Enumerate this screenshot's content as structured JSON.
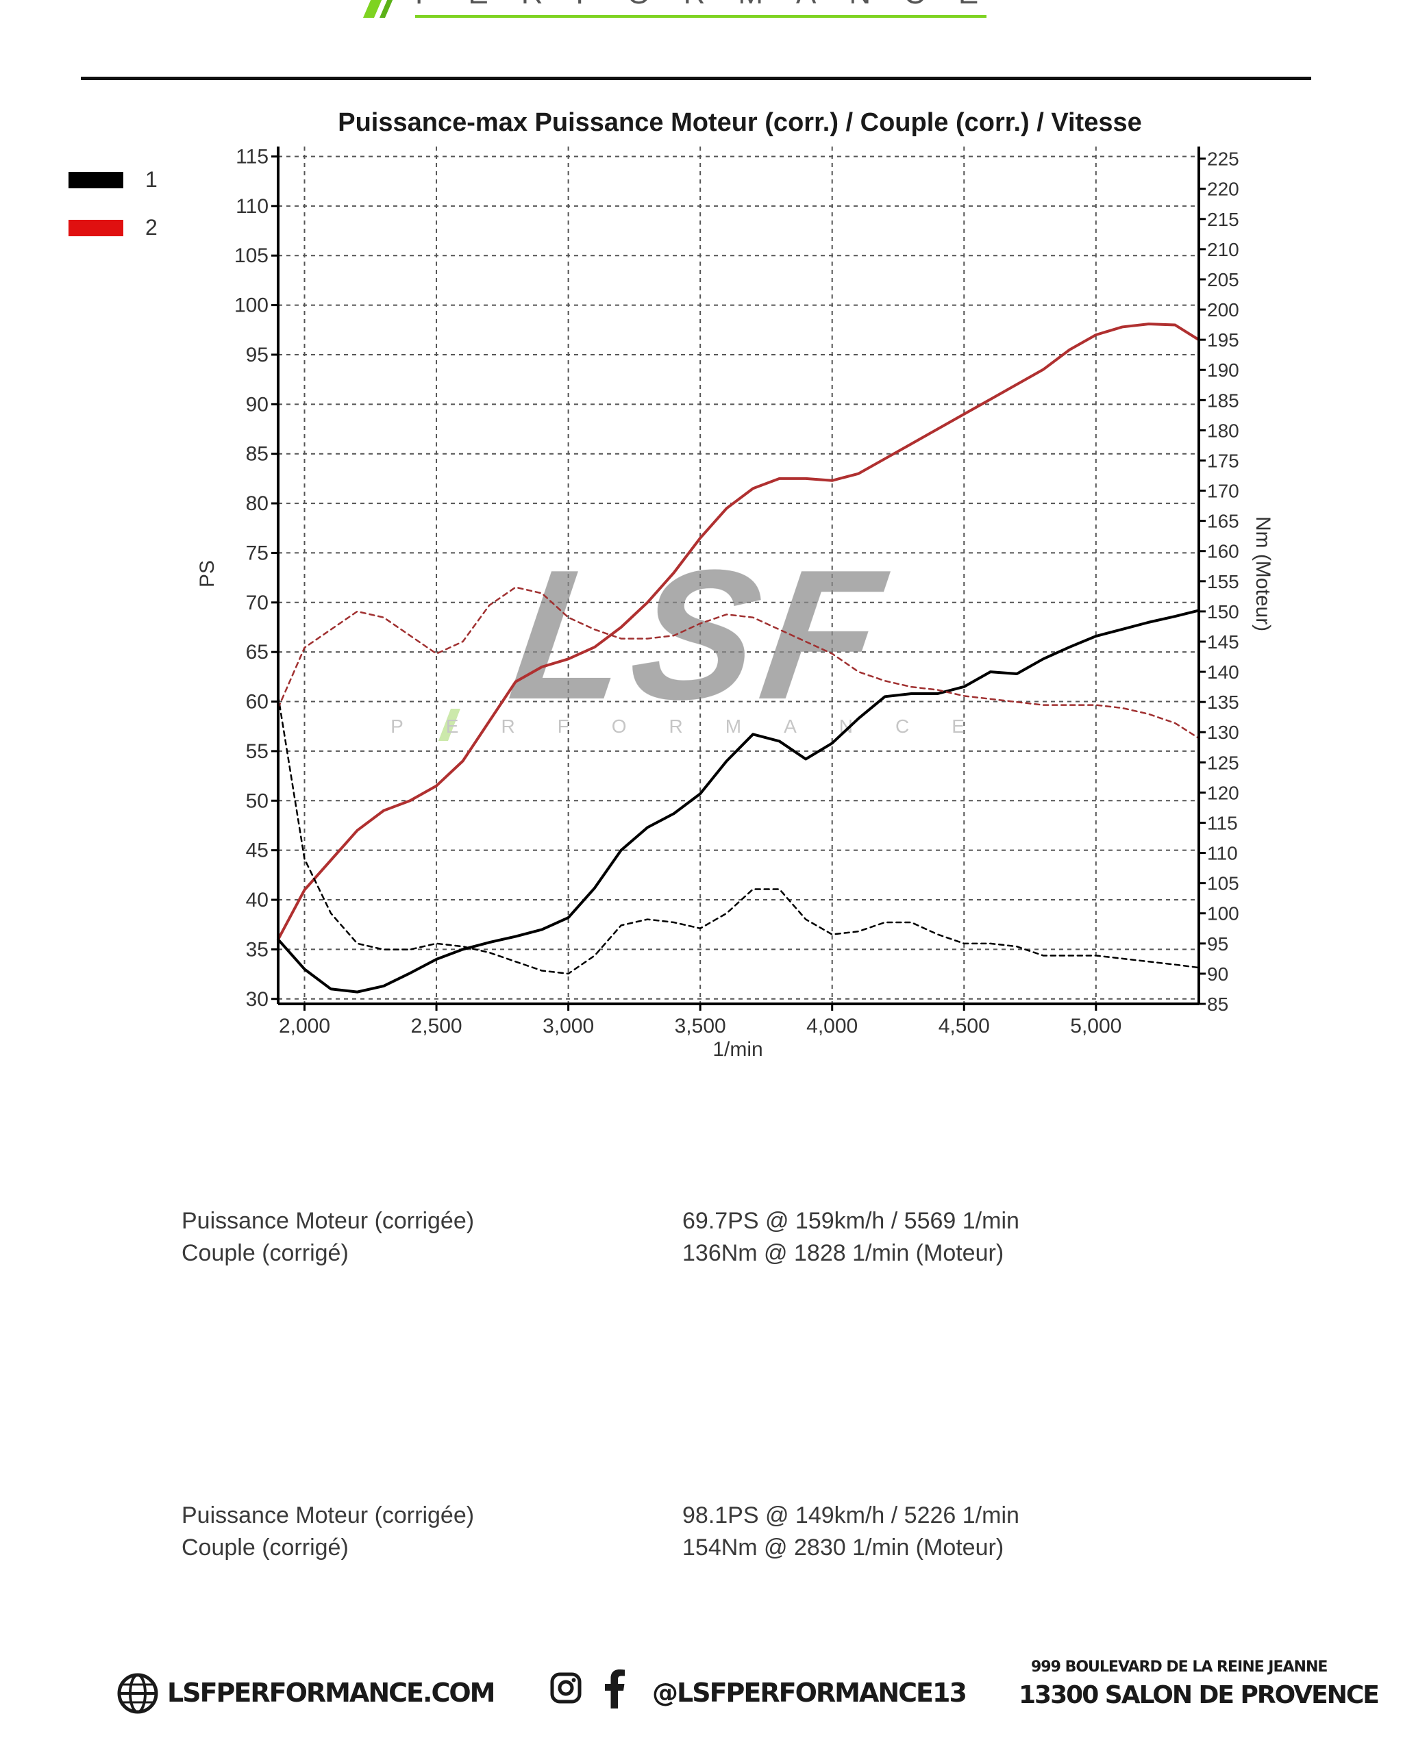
{
  "header": {
    "brand_text": "PERFORMANCE"
  },
  "watermark": {
    "logo_text": "LSF",
    "sub_text": "PERFORMANCE"
  },
  "chart_data": {
    "type": "line",
    "title": "Puissance-max Puissance Moteur (corr.) / Couple (corr.) / Vitesse",
    "xlabel": "1/min",
    "ylabel_left": "PS",
    "ylabel_right": "Nm (Moteur)",
    "xlim": [
      1900,
      5390
    ],
    "ylim_left": [
      29.5,
      116
    ],
    "ylim_right": [
      85,
      227
    ],
    "x_ticks": [
      2000,
      2500,
      3000,
      3500,
      4000,
      4500,
      5000
    ],
    "x_tick_labels": [
      "2,000",
      "2,500",
      "3,000",
      "3,500",
      "4,000",
      "4,500",
      "5,000"
    ],
    "y_left_ticks": [
      30,
      35,
      40,
      45,
      50,
      55,
      60,
      65,
      70,
      75,
      80,
      85,
      90,
      95,
      100,
      105,
      110,
      115
    ],
    "y_right_ticks": [
      85,
      90,
      95,
      100,
      105,
      110,
      115,
      120,
      125,
      130,
      135,
      140,
      145,
      150,
      155,
      160,
      165,
      170,
      175,
      180,
      185,
      190,
      195,
      200,
      205,
      210,
      215,
      220,
      225
    ],
    "grid": true,
    "legend": {
      "position": "top-left",
      "entries": [
        {
          "label": "1",
          "color": "#000000"
        },
        {
          "label": "2",
          "color": "#e01010"
        }
      ]
    },
    "series": [
      {
        "legend": "1",
        "quantity": "PS",
        "axis": "left",
        "style": "solid",
        "color": "#000000",
        "x": [
          1900,
          2000,
          2100,
          2200,
          2300,
          2400,
          2500,
          2600,
          2700,
          2800,
          2900,
          3000,
          3100,
          3200,
          3300,
          3400,
          3500,
          3600,
          3700,
          3800,
          3900,
          4000,
          4100,
          4200,
          4300,
          4400,
          4500,
          4600,
          4700,
          4800,
          4900,
          5000,
          5100,
          5200,
          5300,
          5390
        ],
        "y": [
          36,
          33,
          31,
          30.7,
          31.3,
          32.6,
          34,
          35,
          35.7,
          36.3,
          37,
          38.2,
          41.2,
          45,
          47.3,
          48.7,
          50.7,
          54,
          56.7,
          56,
          54.2,
          55.8,
          58.3,
          60.5,
          60.8,
          60.8,
          61.5,
          63,
          62.8,
          64.3,
          65.5,
          66.6,
          67.3,
          68,
          68.6,
          69.2
        ]
      },
      {
        "legend": "2",
        "quantity": "PS",
        "axis": "left",
        "style": "solid",
        "color": "#b03030",
        "x": [
          1900,
          2000,
          2100,
          2200,
          2300,
          2400,
          2500,
          2600,
          2700,
          2800,
          2900,
          3000,
          3100,
          3200,
          3300,
          3400,
          3500,
          3600,
          3700,
          3800,
          3900,
          4000,
          4100,
          4200,
          4300,
          4400,
          4500,
          4600,
          4700,
          4800,
          4900,
          5000,
          5100,
          5200,
          5300,
          5390
        ],
        "y": [
          36,
          41,
          44,
          47,
          49,
          50,
          51.5,
          54,
          58,
          62,
          63.5,
          64.3,
          65.5,
          67.5,
          70,
          73,
          76.5,
          79.5,
          81.5,
          82.5,
          82.5,
          82.3,
          83,
          84.5,
          86,
          87.5,
          89,
          90.5,
          92,
          93.5,
          95.5,
          97,
          97.8,
          98.1,
          98,
          96.5
        ]
      },
      {
        "legend": "1",
        "quantity": "Nm",
        "axis": "right",
        "style": "dashed",
        "color": "#000000",
        "x": [
          1900,
          2000,
          2100,
          2200,
          2300,
          2400,
          2500,
          2600,
          2700,
          2800,
          2900,
          3000,
          3100,
          3200,
          3300,
          3400,
          3500,
          3600,
          3700,
          3800,
          3900,
          4000,
          4100,
          4200,
          4300,
          4400,
          4500,
          4600,
          4700,
          4800,
          4900,
          5000,
          5100,
          5200,
          5300,
          5390
        ],
        "y": [
          136,
          109,
          100,
          95,
          94,
          94,
          95,
          94.5,
          93.5,
          92,
          90.5,
          90,
          93,
          98,
          99,
          98.5,
          97.5,
          100,
          104,
          104,
          99,
          96.5,
          97,
          98.5,
          98.5,
          96.5,
          95,
          95,
          94.5,
          93,
          93,
          93,
          92.5,
          92,
          91.5,
          91
        ]
      },
      {
        "legend": "2",
        "quantity": "Nm",
        "axis": "right",
        "style": "dashed",
        "color": "#a03030",
        "x": [
          1900,
          2000,
          2100,
          2200,
          2300,
          2400,
          2500,
          2600,
          2700,
          2800,
          2900,
          3000,
          3100,
          3200,
          3300,
          3400,
          3500,
          3600,
          3700,
          3800,
          3900,
          4000,
          4100,
          4200,
          4300,
          4400,
          4500,
          4600,
          4700,
          4800,
          4900,
          5000,
          5100,
          5200,
          5300,
          5390
        ],
        "y": [
          134,
          144,
          147,
          150,
          149,
          146,
          143,
          145,
          151,
          154,
          153,
          149,
          147,
          145.5,
          145.5,
          146,
          148,
          149.5,
          149,
          147,
          145,
          143,
          140,
          138.5,
          137.5,
          137,
          136,
          135.5,
          135,
          134.5,
          134.5,
          134.5,
          134,
          133,
          131.5,
          129
        ]
      }
    ]
  },
  "summary": [
    {
      "rows": [
        {
          "label": "Puissance Moteur (corrigée)",
          "value": "69.7PS @ 159km/h / 5569 1/min"
        },
        {
          "label": "Couple (corrigé)",
          "value": "136Nm @ 1828 1/min (Moteur)"
        }
      ]
    },
    {
      "rows": [
        {
          "label": "Puissance Moteur (corrigée)",
          "value": "98.1PS @ 149km/h / 5226 1/min"
        },
        {
          "label": "Couple (corrigé)",
          "value": "154Nm @ 2830 1/min (Moteur)"
        }
      ]
    }
  ],
  "footer": {
    "website": "LSFPERFORMANCE.COM",
    "social_handle": "@LSFPERFORMANCE13",
    "address_line1": "999 BOULEVARD DE LA REINE JEANNE",
    "address_line2": "13300 SALON DE PROVENCE",
    "icons": [
      "globe-icon",
      "instagram-icon",
      "facebook-icon"
    ]
  }
}
